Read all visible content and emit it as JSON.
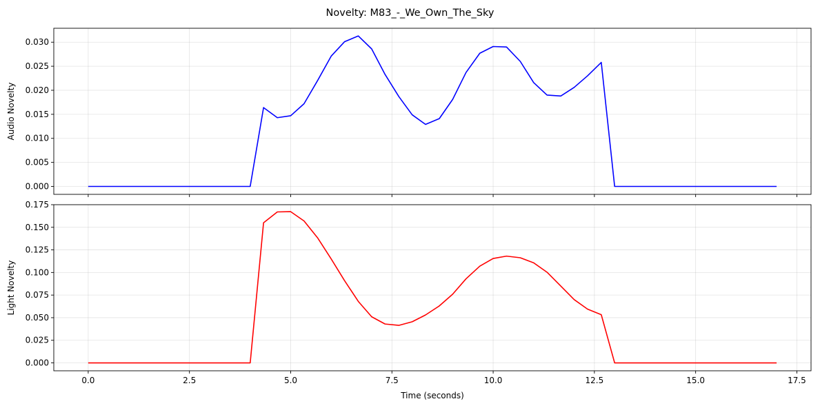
{
  "title": "Novelty: M83_-_We_Own_The_Sky",
  "chart_data": [
    {
      "type": "line",
      "ylabel": "Audio Novelty",
      "xlabel": "",
      "xlim": [
        -0.85,
        17.85
      ],
      "ylim": [
        -0.00165,
        0.0329
      ],
      "xticks": [
        0.0,
        2.5,
        5.0,
        7.5,
        10.0,
        12.5,
        15.0,
        17.5
      ],
      "xtick_labels_visible": false,
      "yticks": [
        0.0,
        0.005,
        0.01,
        0.015,
        0.02,
        0.025,
        0.03
      ],
      "ytick_labels": [
        "0.000",
        "0.005",
        "0.010",
        "0.015",
        "0.020",
        "0.025",
        "0.030"
      ],
      "grid": true,
      "series": [
        {
          "color": "#0000ff",
          "x": [
            0,
            4.0,
            4.33,
            4.67,
            5.0,
            5.33,
            5.67,
            6.0,
            6.33,
            6.67,
            7.0,
            7.33,
            7.67,
            8.0,
            8.33,
            8.67,
            9.0,
            9.33,
            9.67,
            10.0,
            10.33,
            10.67,
            11.0,
            11.33,
            11.67,
            12.0,
            12.33,
            12.67,
            13.0,
            17.0
          ],
          "y": [
            0.0,
            0.0,
            0.0164,
            0.0143,
            0.0147,
            0.0172,
            0.0221,
            0.0271,
            0.0301,
            0.0313,
            0.0286,
            0.0233,
            0.0187,
            0.0149,
            0.0129,
            0.0141,
            0.0181,
            0.0237,
            0.0277,
            0.0291,
            0.029,
            0.026,
            0.0216,
            0.019,
            0.0188,
            0.0206,
            0.023,
            0.0258,
            0.0,
            0.0
          ]
        }
      ]
    },
    {
      "type": "line",
      "ylabel": "Light Novelty",
      "xlabel": "Time (seconds)",
      "xlim": [
        -0.85,
        17.85
      ],
      "ylim": [
        -0.00875,
        0.175
      ],
      "xticks": [
        0.0,
        2.5,
        5.0,
        7.5,
        10.0,
        12.5,
        15.0,
        17.5
      ],
      "xtick_labels": [
        "0.0",
        "2.5",
        "5.0",
        "7.5",
        "10.0",
        "12.5",
        "15.0",
        "17.5"
      ],
      "yticks": [
        0.0,
        0.025,
        0.05,
        0.075,
        0.1,
        0.125,
        0.15,
        0.175
      ],
      "ytick_labels": [
        "0.000",
        "0.025",
        "0.050",
        "0.075",
        "0.100",
        "0.125",
        "0.150",
        "0.175"
      ],
      "grid": true,
      "series": [
        {
          "color": "#ff0000",
          "x": [
            0,
            4.0,
            4.33,
            4.67,
            5.0,
            5.33,
            5.67,
            6.0,
            6.33,
            6.67,
            7.0,
            7.33,
            7.67,
            8.0,
            8.33,
            8.67,
            9.0,
            9.33,
            9.67,
            10.0,
            10.33,
            10.67,
            11.0,
            11.33,
            11.67,
            12.0,
            12.33,
            12.67,
            13.0,
            17.0
          ],
          "y": [
            0.0,
            0.0,
            0.155,
            0.167,
            0.1673,
            0.157,
            0.138,
            0.115,
            0.091,
            0.068,
            0.051,
            0.043,
            0.0415,
            0.0455,
            0.053,
            0.063,
            0.076,
            0.093,
            0.107,
            0.1155,
            0.1181,
            0.1163,
            0.1107,
            0.1003,
            0.085,
            0.07,
            0.0595,
            0.0533,
            0.0,
            0.0
          ]
        }
      ]
    }
  ]
}
